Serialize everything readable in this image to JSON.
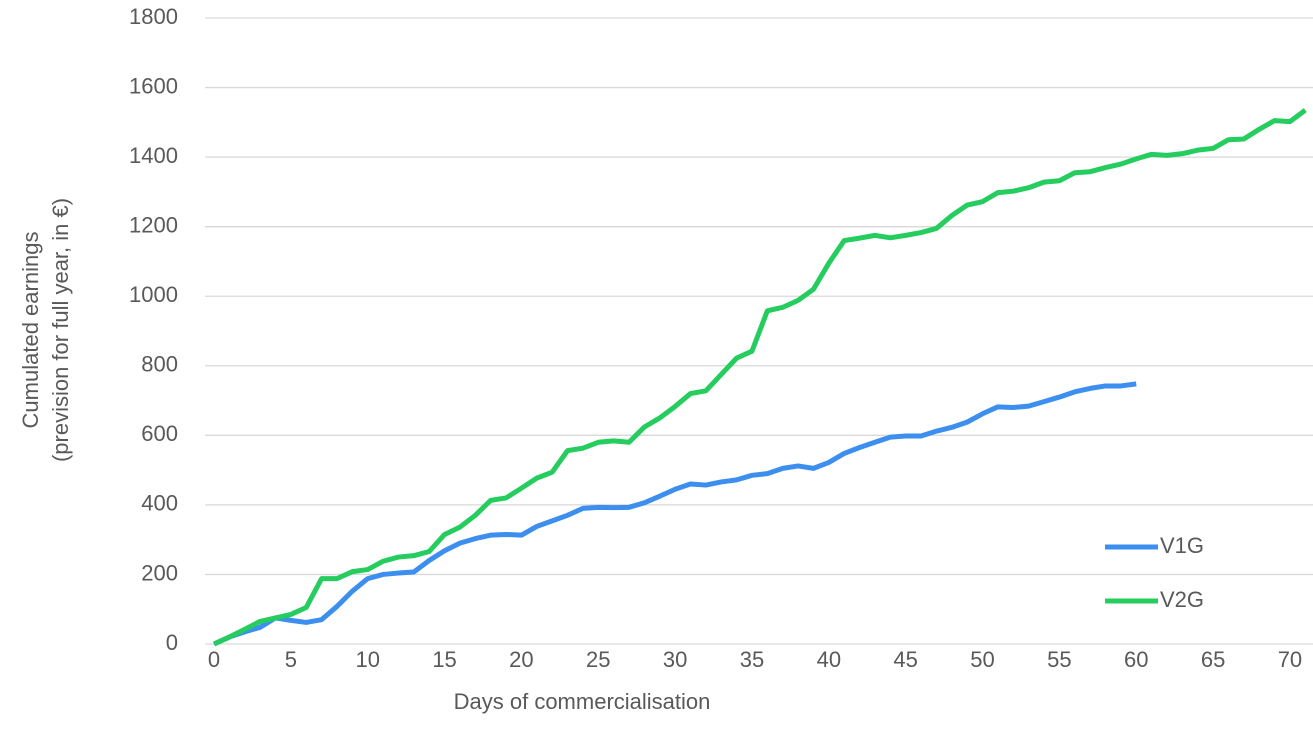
{
  "chart_data": {
    "type": "line",
    "x_label": "Days of commercialisation",
    "y_label": [
      "Cumulated earnings",
      "(prevision for full year, in €)"
    ],
    "x": [
      0,
      1,
      2,
      3,
      4,
      5,
      6,
      7,
      8,
      9,
      10,
      11,
      12,
      13,
      14,
      15,
      16,
      17,
      18,
      19,
      20,
      21,
      22,
      23,
      24,
      25,
      26,
      27,
      28,
      29,
      30,
      31,
      32,
      33,
      34,
      35,
      36,
      37,
      38,
      39,
      40,
      41,
      42,
      43,
      44,
      45,
      46,
      47,
      48,
      49,
      50,
      51,
      52,
      53,
      54,
      55,
      56,
      57,
      58,
      59,
      60,
      61,
      62,
      63,
      64,
      65,
      66,
      67,
      68,
      69,
      70,
      71
    ],
    "series": [
      {
        "name": "V1G",
        "color": "#3d8fef",
        "values": [
          0,
          20,
          35,
          48,
          75,
          68,
          62,
          70,
          108,
          152,
          188,
          200,
          204,
          207,
          240,
          268,
          290,
          303,
          313,
          315,
          313,
          338,
          354,
          370,
          390,
          393,
          392,
          393,
          406,
          425,
          445,
          460,
          457,
          466,
          472,
          485,
          490,
          505,
          512,
          505,
          522,
          548,
          565,
          580,
          595,
          598,
          598,
          612,
          623,
          638,
          662,
          682,
          680,
          684,
          697,
          710,
          725,
          735,
          742,
          742,
          748,
          null,
          null,
          null,
          null,
          null,
          null,
          null,
          null,
          null,
          null,
          null
        ]
      },
      {
        "name": "V2G",
        "color": "#25cc5e",
        "values": [
          0,
          20,
          42,
          65,
          75,
          85,
          105,
          188,
          188,
          208,
          214,
          238,
          250,
          254,
          266,
          315,
          336,
          370,
          413,
          420,
          448,
          477,
          494,
          556,
          563,
          580,
          584,
          580,
          624,
          650,
          683,
          720,
          728,
          775,
          822,
          842,
          958,
          968,
          988,
          1020,
          1095,
          1160,
          1167,
          1175,
          1168,
          1175,
          1183,
          1195,
          1232,
          1262,
          1272,
          1298,
          1302,
          1312,
          1328,
          1332,
          1355,
          1358,
          1370,
          1380,
          1395,
          1408,
          1405,
          1410,
          1420,
          1425,
          1450,
          1452,
          1480,
          1505,
          1502,
          1535
        ]
      }
    ],
    "xlim": [
      0,
      71.5
    ],
    "xticks": [
      0,
      5,
      10,
      15,
      20,
      25,
      30,
      35,
      40,
      45,
      50,
      55,
      60,
      65,
      70
    ],
    "ylim": [
      0,
      1800
    ],
    "yticks": [
      0,
      200,
      400,
      600,
      800,
      1000,
      1200,
      1400,
      1600,
      1800
    ],
    "grid": true,
    "legend": "lower right"
  }
}
